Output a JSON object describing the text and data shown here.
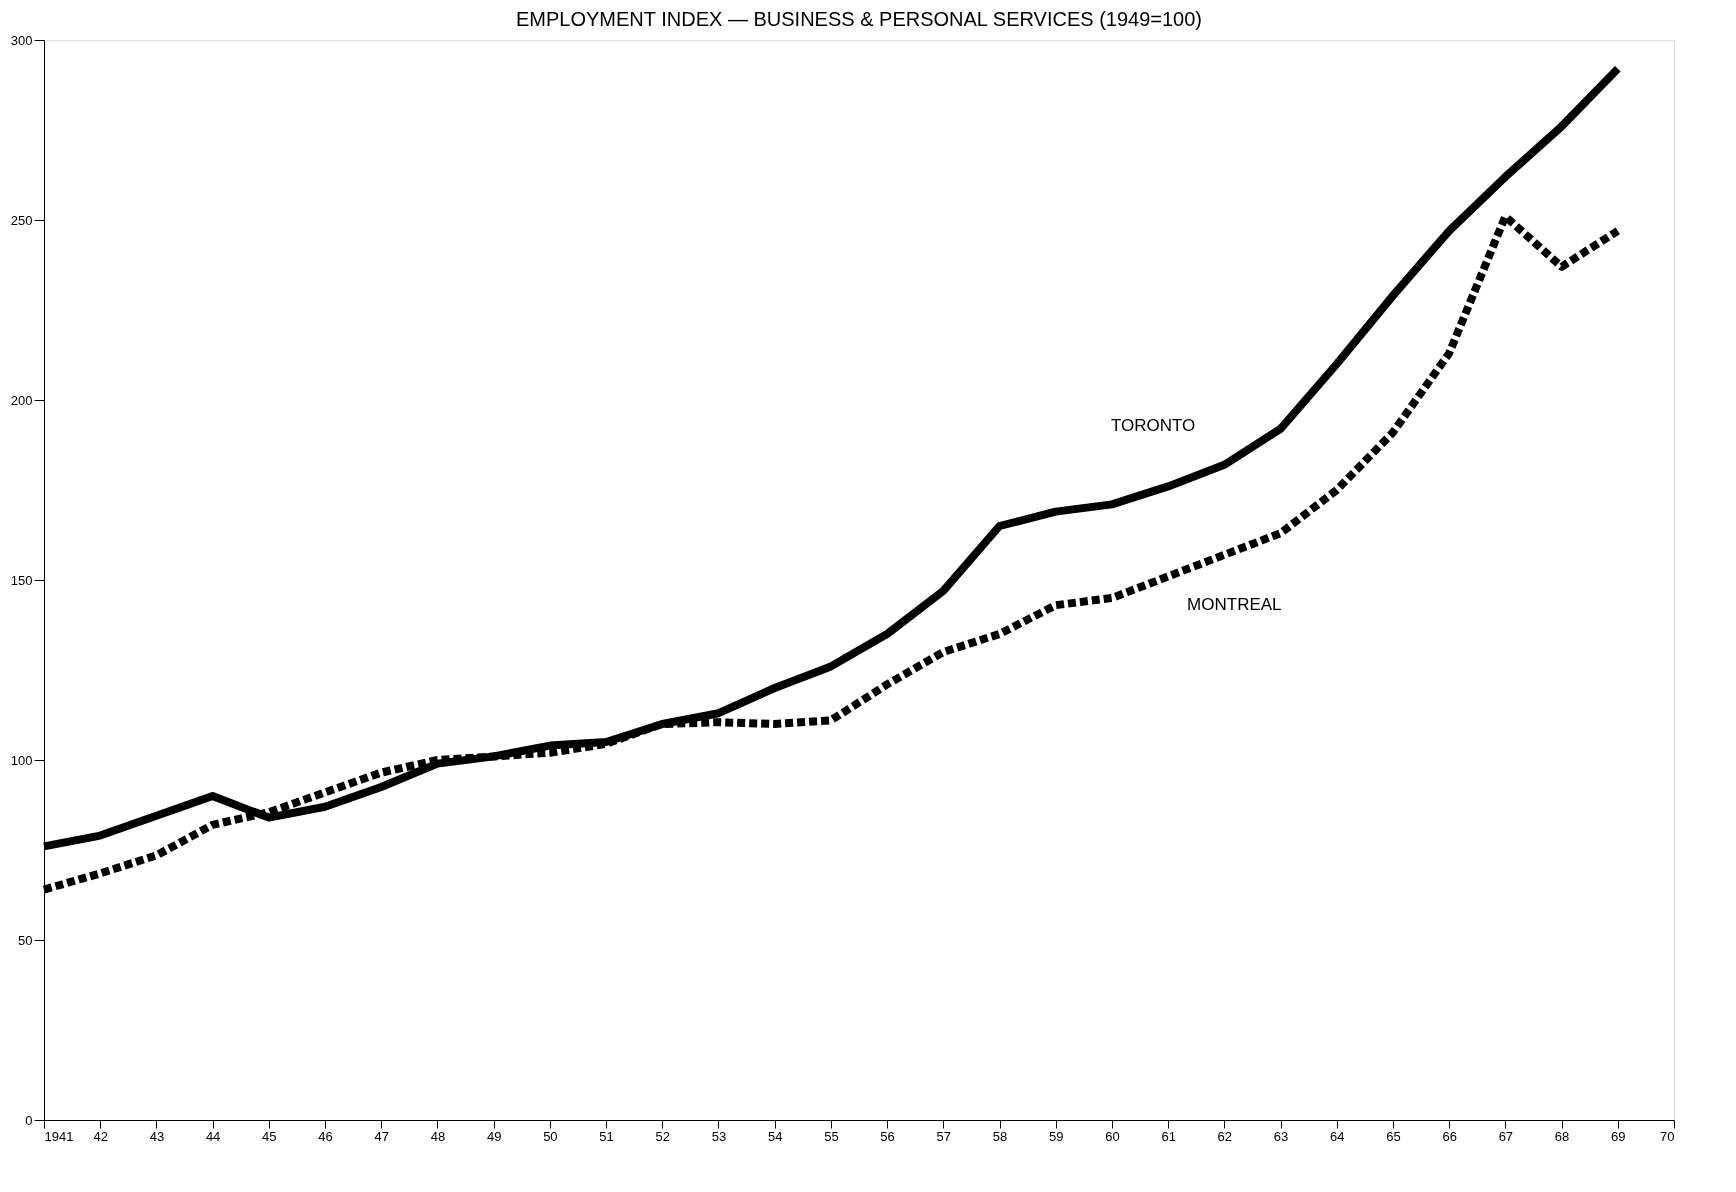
{
  "chart_data": {
    "type": "line",
    "title": "EMPLOYMENT INDEX — BUSINESS & PERSONAL SERVICES (1949=100)",
    "x": [
      1941,
      1942,
      1943,
      1944,
      1945,
      1946,
      1947,
      1948,
      1949,
      1950,
      1951,
      1952,
      1953,
      1954,
      1955,
      1956,
      1957,
      1958,
      1959,
      1960,
      1961,
      1962,
      1963,
      1964,
      1965,
      1966,
      1967,
      1968,
      1969
    ],
    "series": [
      {
        "name": "TORONTO",
        "color": "#000000",
        "line_style": "solid",
        "values": [
          76,
          79,
          84.5,
          90,
          84,
          87,
          92.5,
          99,
          101,
          104,
          105,
          110,
          113,
          120,
          126,
          135,
          147,
          165,
          169,
          171,
          176,
          182,
          192,
          210,
          229,
          247,
          262,
          276,
          292
        ]
      },
      {
        "name": "MONTREAL",
        "color": "#000000",
        "line_style": "dashed",
        "values": [
          64,
          68.5,
          73.5,
          82,
          85.5,
          91,
          96.5,
          100,
          101,
          102,
          104.5,
          110,
          110.5,
          110,
          111,
          121,
          130,
          135,
          143,
          145,
          151,
          157,
          163,
          175,
          191,
          213,
          251,
          237,
          247
        ]
      }
    ],
    "xlim": [
      1941,
      1970
    ],
    "xticks": [
      {
        "value": 1941,
        "label": "1941"
      },
      {
        "value": 1942,
        "label": "42"
      },
      {
        "value": 1943,
        "label": "43"
      },
      {
        "value": 1944,
        "label": "44"
      },
      {
        "value": 1945,
        "label": "45"
      },
      {
        "value": 1946,
        "label": "46"
      },
      {
        "value": 1947,
        "label": "47"
      },
      {
        "value": 1948,
        "label": "48"
      },
      {
        "value": 1949,
        "label": "49"
      },
      {
        "value": 1950,
        "label": "50"
      },
      {
        "value": 1951,
        "label": "51"
      },
      {
        "value": 1952,
        "label": "52"
      },
      {
        "value": 1953,
        "label": "53"
      },
      {
        "value": 1954,
        "label": "54"
      },
      {
        "value": 1955,
        "label": "55"
      },
      {
        "value": 1956,
        "label": "56"
      },
      {
        "value": 1957,
        "label": "57"
      },
      {
        "value": 1958,
        "label": "58"
      },
      {
        "value": 1959,
        "label": "59"
      },
      {
        "value": 1960,
        "label": "60"
      },
      {
        "value": 1961,
        "label": "61"
      },
      {
        "value": 1962,
        "label": "62"
      },
      {
        "value": 1963,
        "label": "63"
      },
      {
        "value": 1964,
        "label": "64"
      },
      {
        "value": 1965,
        "label": "65"
      },
      {
        "value": 1966,
        "label": "66"
      },
      {
        "value": 1967,
        "label": "67"
      },
      {
        "value": 1968,
        "label": "68"
      },
      {
        "value": 1969,
        "label": "69"
      },
      {
        "value": 1970,
        "label": "70"
      }
    ],
    "ylim": [
      0,
      300
    ],
    "yticks": [
      0,
      50,
      100,
      150,
      200,
      250,
      300
    ],
    "grid": false,
    "legend": false,
    "marker": "none"
  }
}
